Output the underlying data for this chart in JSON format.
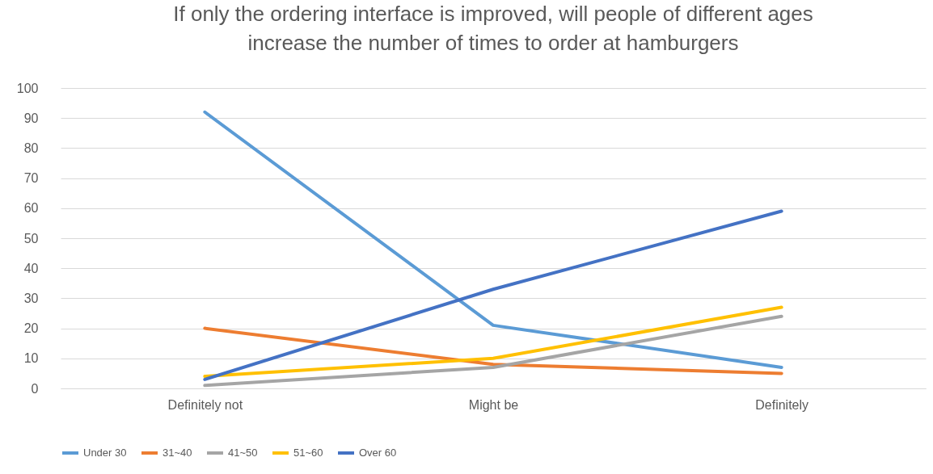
{
  "chart_data": {
    "type": "line",
    "title": [
      "If only the ordering interface is improved, will people of different ages",
      "increase the number of times to order at hamburgers"
    ],
    "categories": [
      "Definitely not",
      "Might be",
      "Definitely"
    ],
    "series": [
      {
        "name": "Under 30",
        "color": "#5b9bd5",
        "values": [
          92,
          21,
          7
        ]
      },
      {
        "name": "31~40",
        "color": "#ed7d31",
        "values": [
          20,
          8,
          5
        ]
      },
      {
        "name": "41~50",
        "color": "#a5a5a5",
        "values": [
          1,
          7,
          24
        ]
      },
      {
        "name": "51~60",
        "color": "#ffc000",
        "values": [
          4,
          10,
          27
        ]
      },
      {
        "name": "Over 60",
        "color": "#4472c4",
        "values": [
          3,
          33,
          59
        ]
      }
    ],
    "ylim": [
      0,
      100
    ],
    "yticks": [
      0,
      10,
      20,
      30,
      40,
      50,
      60,
      70,
      80,
      90,
      100
    ],
    "grid": "y",
    "legend": "bottom",
    "marker": "none",
    "line_style": "solid"
  }
}
